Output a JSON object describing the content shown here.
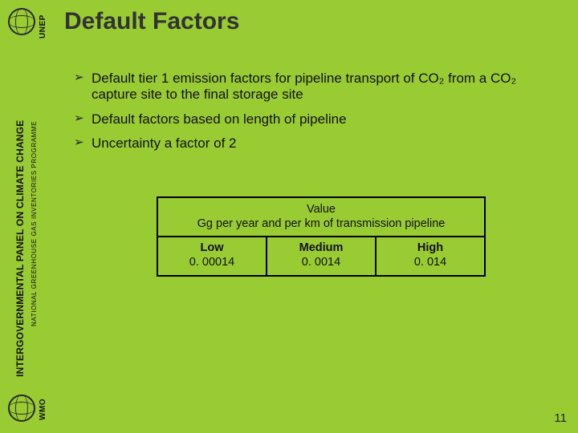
{
  "vlabels": {
    "unep": "UNEP",
    "ipcc": "INTERGOVERNMENTAL PANEL ON CLIMATE CHANGE",
    "nghgip": "NATIONAL GREENHOUSE GAS INVENTORIES PROGRAMME",
    "wmo": "WMO"
  },
  "title": "Default Factors",
  "bullets": [
    "Default tier 1 emission factors for pipeline transport of CO₂ from a CO₂ capture site to the final storage site",
    "Default factors based on length of pipeline",
    "Uncertainty a factor of 2"
  ],
  "table": {
    "header_line1": "Value",
    "header_line2": "Gg per year and per km of transmission pipeline",
    "cols": [
      {
        "label": "Low",
        "value": "0. 00014"
      },
      {
        "label": "Medium",
        "value": "0. 0014"
      },
      {
        "label": "High",
        "value": "0. 014"
      }
    ]
  },
  "page_number": "11"
}
